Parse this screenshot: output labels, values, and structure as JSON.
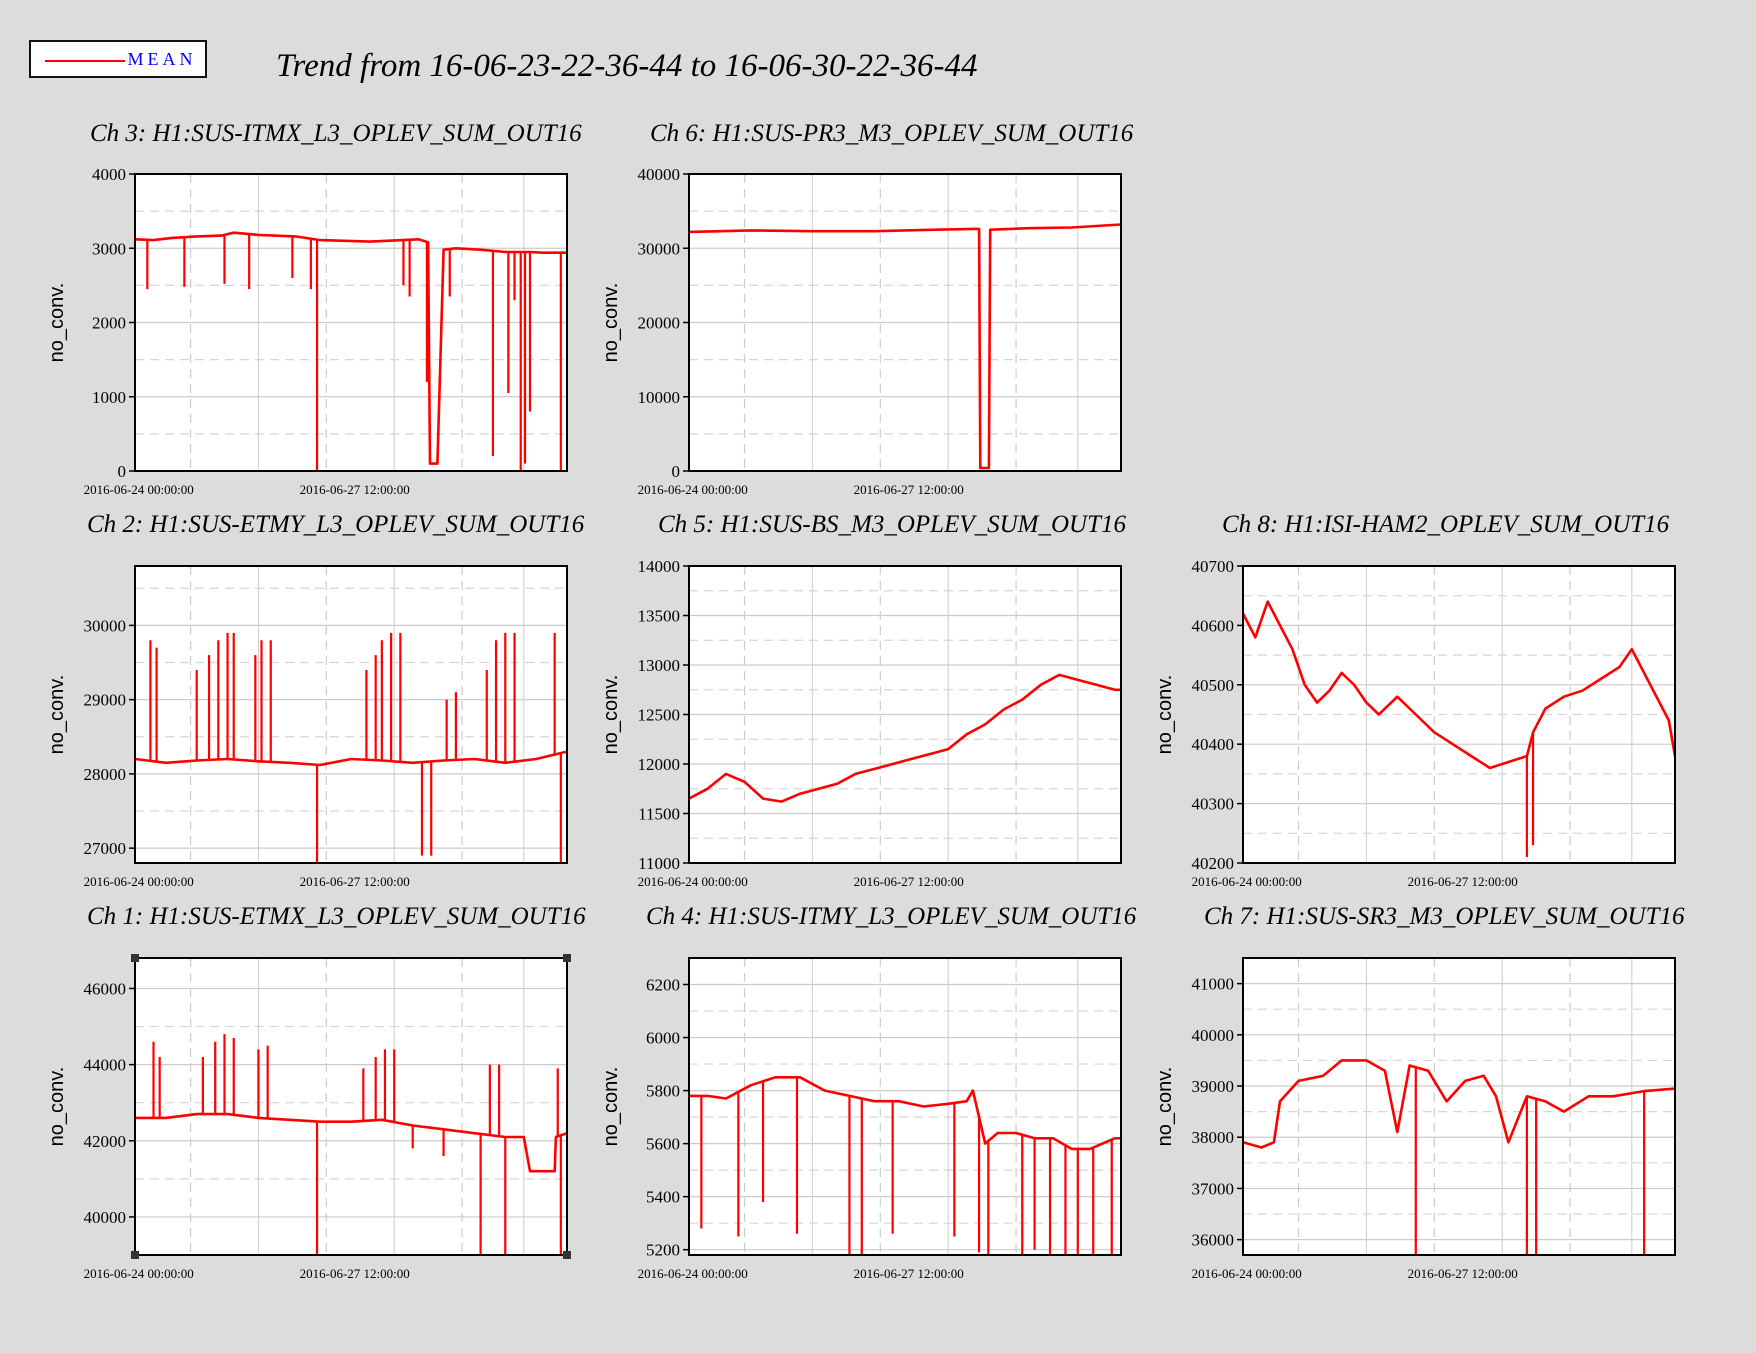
{
  "legend": {
    "label": "MEAN",
    "color": "#ff0000",
    "label_color": "#0000ff"
  },
  "trend_title": "Trend from 16-06-23-22-36-44 to 16-06-30-22-36-44",
  "chart_data": [
    {
      "type": "line",
      "title": "Ch 3: H1:SUS-ITMX_L3_OPLEV_SUM_OUT16",
      "ylabel": "no_conv.",
      "xlabel": "",
      "xlim": [
        0,
        7
      ],
      "xticks": [
        {
          "value": 0.06,
          "label": "2016-06-24 00:00:00"
        },
        {
          "value": 3.56,
          "label": "2016-06-27 12:00:00"
        }
      ],
      "ylim": [
        0,
        4000
      ],
      "yticks": [
        0,
        1000,
        2000,
        3000,
        4000
      ],
      "grid": true,
      "series": [
        {
          "color": "#ff0000",
          "x": [
            0.0,
            0.3,
            0.6,
            1.0,
            1.4,
            1.6,
            2.0,
            2.6,
            3.0,
            3.8,
            4.6,
            4.75,
            4.78,
            4.9,
            5.0,
            5.2,
            5.6,
            6.0,
            6.4,
            6.6,
            7.0
          ],
          "y": [
            3120,
            3110,
            3140,
            3160,
            3170,
            3210,
            3180,
            3160,
            3110,
            3090,
            3120,
            3080,
            100,
            100,
            2980,
            3000,
            2980,
            2950,
            2950,
            2940,
            2940
          ]
        }
      ],
      "spikes": [
        {
          "x": 0.2,
          "y": 2450
        },
        {
          "x": 0.8,
          "y": 2480
        },
        {
          "x": 1.45,
          "y": 2520
        },
        {
          "x": 1.85,
          "y": 2450
        },
        {
          "x": 2.55,
          "y": 2600
        },
        {
          "x": 2.85,
          "y": 2450
        },
        {
          "x": 2.95,
          "y": 0
        },
        {
          "x": 4.35,
          "y": 2500
        },
        {
          "x": 4.45,
          "y": 2350
        },
        {
          "x": 4.73,
          "y": 1200
        },
        {
          "x": 5.1,
          "y": 2350
        },
        {
          "x": 5.8,
          "y": 200
        },
        {
          "x": 6.05,
          "y": 1050
        },
        {
          "x": 6.15,
          "y": 2300
        },
        {
          "x": 6.25,
          "y": 0
        },
        {
          "x": 6.32,
          "y": 100
        },
        {
          "x": 6.4,
          "y": 800
        },
        {
          "x": 6.9,
          "y": 0
        }
      ]
    },
    {
      "type": "line",
      "title": "Ch 6: H1:SUS-PR3_M3_OPLEV_SUM_OUT16",
      "ylabel": "no_conv.",
      "xlabel": "",
      "xlim": [
        0,
        7
      ],
      "xticks": [
        {
          "value": 0.06,
          "label": "2016-06-24 00:00:00"
        },
        {
          "value": 3.56,
          "label": "2016-06-27 12:00:00"
        }
      ],
      "ylim": [
        0,
        40000
      ],
      "yticks": [
        0,
        10000,
        20000,
        30000,
        40000
      ],
      "grid": true,
      "series": [
        {
          "color": "#ff0000",
          "x": [
            0.0,
            1.0,
            2.0,
            3.0,
            4.0,
            4.6,
            4.7,
            4.72,
            4.86,
            4.88,
            5.5,
            6.2,
            7.0
          ],
          "y": [
            32200,
            32400,
            32300,
            32300,
            32500,
            32600,
            32600,
            400,
            400,
            32500,
            32700,
            32800,
            33200
          ]
        }
      ],
      "spikes": []
    },
    {
      "type": "line",
      "title": "Ch 2: H1:SUS-ETMY_L3_OPLEV_SUM_OUT16",
      "ylabel": "no_conv.",
      "xlabel": "",
      "xlim": [
        0,
        7
      ],
      "xticks": [
        {
          "value": 0.06,
          "label": "2016-06-24 00:00:00"
        },
        {
          "value": 3.56,
          "label": "2016-06-27 12:00:00"
        }
      ],
      "ylim": [
        26800,
        30800
      ],
      "yticks": [
        27000,
        28000,
        29000,
        30000
      ],
      "grid": true,
      "series": [
        {
          "color": "#ff0000",
          "x": [
            0.0,
            0.5,
            1.0,
            1.5,
            2.0,
            2.5,
            3.0,
            3.5,
            4.0,
            4.5,
            5.0,
            5.5,
            6.0,
            6.5,
            7.0
          ],
          "y": [
            28200,
            28150,
            28180,
            28200,
            28170,
            28150,
            28120,
            28200,
            28180,
            28150,
            28180,
            28200,
            28150,
            28200,
            28300
          ]
        }
      ],
      "spikes": [
        {
          "x": 0.25,
          "y": 29800
        },
        {
          "x": 0.35,
          "y": 29700
        },
        {
          "x": 1.0,
          "y": 29400
        },
        {
          "x": 1.2,
          "y": 29600
        },
        {
          "x": 1.35,
          "y": 29800
        },
        {
          "x": 1.5,
          "y": 29900
        },
        {
          "x": 1.6,
          "y": 29900
        },
        {
          "x": 1.95,
          "y": 29600
        },
        {
          "x": 2.05,
          "y": 29800
        },
        {
          "x": 2.2,
          "y": 29800
        },
        {
          "x": 2.95,
          "y": 26800
        },
        {
          "x": 3.75,
          "y": 29400
        },
        {
          "x": 3.9,
          "y": 29600
        },
        {
          "x": 4.0,
          "y": 29800
        },
        {
          "x": 4.15,
          "y": 29900
        },
        {
          "x": 4.3,
          "y": 29900
        },
        {
          "x": 4.65,
          "y": 26900
        },
        {
          "x": 4.8,
          "y": 26900
        },
        {
          "x": 5.05,
          "y": 29000
        },
        {
          "x": 5.2,
          "y": 29100
        },
        {
          "x": 5.7,
          "y": 29400
        },
        {
          "x": 5.85,
          "y": 29800
        },
        {
          "x": 6.0,
          "y": 29900
        },
        {
          "x": 6.15,
          "y": 29900
        },
        {
          "x": 6.8,
          "y": 29900
        },
        {
          "x": 6.9,
          "y": 26800
        }
      ]
    },
    {
      "type": "line",
      "title": "Ch 5: H1:SUS-BS_M3_OPLEV_SUM_OUT16",
      "ylabel": "no_conv.",
      "xlabel": "",
      "xlim": [
        0,
        7
      ],
      "xticks": [
        {
          "value": 0.06,
          "label": "2016-06-24 00:00:00"
        },
        {
          "value": 3.56,
          "label": "2016-06-27 12:00:00"
        }
      ],
      "ylim": [
        11000,
        14000
      ],
      "yticks": [
        11000,
        11500,
        12000,
        12500,
        13000,
        13500,
        14000
      ],
      "grid": true,
      "series": [
        {
          "color": "#ff0000",
          "x": [
            0.0,
            0.3,
            0.6,
            0.9,
            1.2,
            1.5,
            1.8,
            2.1,
            2.4,
            2.7,
            3.0,
            3.3,
            3.6,
            3.9,
            4.2,
            4.5,
            4.8,
            5.1,
            5.4,
            5.7,
            6.0,
            6.3,
            6.6,
            6.9,
            7.0
          ],
          "y": [
            11650,
            11750,
            11900,
            11820,
            11650,
            11620,
            11700,
            11750,
            11800,
            11900,
            11950,
            12000,
            12050,
            12100,
            12150,
            12300,
            12400,
            12550,
            12650,
            12800,
            12900,
            12850,
            12800,
            12750,
            12750
          ]
        }
      ],
      "spikes": []
    },
    {
      "type": "line",
      "title": "Ch 8: H1:ISI-HAM2_OPLEV_SUM_OUT16",
      "ylabel": "no_conv.",
      "xlabel": "",
      "xlim": [
        0,
        7
      ],
      "xticks": [
        {
          "value": 0.06,
          "label": "2016-06-24 00:00:00"
        },
        {
          "value": 3.56,
          "label": "2016-06-27 12:00:00"
        }
      ],
      "ylim": [
        40200,
        40700
      ],
      "yticks": [
        40200,
        40300,
        40400,
        40500,
        40600,
        40700
      ],
      "grid": true,
      "series": [
        {
          "color": "#ff0000",
          "x": [
            0.0,
            0.2,
            0.4,
            0.6,
            0.8,
            1.0,
            1.2,
            1.4,
            1.6,
            1.8,
            2.0,
            2.2,
            2.5,
            2.8,
            3.1,
            3.4,
            3.7,
            4.0,
            4.3,
            4.6,
            4.7,
            4.9,
            5.2,
            5.5,
            5.8,
            6.1,
            6.3,
            6.5,
            6.7,
            6.9,
            7.0
          ],
          "y": [
            40620,
            40580,
            40640,
            40600,
            40560,
            40500,
            40470,
            40490,
            40520,
            40500,
            40470,
            40450,
            40480,
            40450,
            40420,
            40400,
            40380,
            40360,
            40370,
            40380,
            40420,
            40460,
            40480,
            40490,
            40510,
            40530,
            40560,
            40520,
            40480,
            40440,
            40380
          ]
        }
      ],
      "spikes": [
        {
          "x": 4.6,
          "y": 40210
        },
        {
          "x": 4.7,
          "y": 40230
        }
      ]
    },
    {
      "type": "line",
      "title": "Ch 1: H1:SUS-ETMX_L3_OPLEV_SUM_OUT16",
      "ylabel": "no_conv.",
      "xlabel": "",
      "xlim": [
        0,
        7
      ],
      "xticks": [
        {
          "value": 0.06,
          "label": "2016-06-24 00:00:00"
        },
        {
          "value": 3.56,
          "label": "2016-06-27 12:00:00"
        }
      ],
      "ylim": [
        39000,
        46800
      ],
      "yticks": [
        40000,
        42000,
        44000,
        46000
      ],
      "grid": true,
      "series": [
        {
          "color": "#ff0000",
          "x": [
            0.0,
            0.5,
            1.0,
            1.5,
            2.0,
            2.5,
            3.0,
            3.5,
            4.0,
            4.5,
            5.0,
            5.5,
            6.0,
            6.3,
            6.4,
            6.8,
            6.82,
            7.0
          ],
          "y": [
            42600,
            42600,
            42700,
            42700,
            42600,
            42550,
            42500,
            42500,
            42550,
            42400,
            42300,
            42200,
            42100,
            42100,
            41200,
            41200,
            42100,
            42200
          ]
        }
      ],
      "spikes": [
        {
          "x": 0.3,
          "y": 44600
        },
        {
          "x": 0.4,
          "y": 44200
        },
        {
          "x": 1.1,
          "y": 44200
        },
        {
          "x": 1.3,
          "y": 44600
        },
        {
          "x": 1.45,
          "y": 44800
        },
        {
          "x": 1.6,
          "y": 44700
        },
        {
          "x": 2.0,
          "y": 44400
        },
        {
          "x": 2.15,
          "y": 44500
        },
        {
          "x": 2.95,
          "y": 39000
        },
        {
          "x": 3.7,
          "y": 43900
        },
        {
          "x": 3.9,
          "y": 44200
        },
        {
          "x": 4.05,
          "y": 44400
        },
        {
          "x": 4.2,
          "y": 44400
        },
        {
          "x": 4.5,
          "y": 41800
        },
        {
          "x": 5.0,
          "y": 41600
        },
        {
          "x": 5.6,
          "y": 39000
        },
        {
          "x": 5.75,
          "y": 44000
        },
        {
          "x": 5.9,
          "y": 44000
        },
        {
          "x": 6.0,
          "y": 39000
        },
        {
          "x": 6.85,
          "y": 43900
        },
        {
          "x": 6.9,
          "y": 39000
        }
      ]
    },
    {
      "type": "line",
      "title": "Ch 4: H1:SUS-ITMY_L3_OPLEV_SUM_OUT16",
      "ylabel": "no_conv.",
      "xlabel": "",
      "xlim": [
        0,
        7
      ],
      "xticks": [
        {
          "value": 0.06,
          "label": "2016-06-24 00:00:00"
        },
        {
          "value": 3.56,
          "label": "2016-06-27 12:00:00"
        }
      ],
      "ylim": [
        5180,
        6300
      ],
      "yticks": [
        5200,
        5400,
        5600,
        5800,
        6000,
        6200
      ],
      "grid": true,
      "series": [
        {
          "color": "#ff0000",
          "x": [
            0.0,
            0.3,
            0.6,
            1.0,
            1.4,
            1.8,
            2.2,
            2.6,
            3.0,
            3.4,
            3.8,
            4.2,
            4.5,
            4.6,
            4.8,
            5.0,
            5.3,
            5.6,
            5.9,
            6.2,
            6.5,
            6.7,
            6.9,
            7.0
          ],
          "y": [
            5780,
            5780,
            5770,
            5820,
            5850,
            5850,
            5800,
            5780,
            5760,
            5760,
            5740,
            5750,
            5760,
            5800,
            5600,
            5640,
            5640,
            5620,
            5620,
            5580,
            5580,
            5600,
            5620,
            5620
          ]
        }
      ],
      "spikes": [
        {
          "x": 0.2,
          "y": 5280
        },
        {
          "x": 0.8,
          "y": 5250
        },
        {
          "x": 1.2,
          "y": 5380
        },
        {
          "x": 1.75,
          "y": 5260
        },
        {
          "x": 2.6,
          "y": 5180
        },
        {
          "x": 2.8,
          "y": 5180
        },
        {
          "x": 3.3,
          "y": 5260
        },
        {
          "x": 4.3,
          "y": 5250
        },
        {
          "x": 4.7,
          "y": 5190
        },
        {
          "x": 4.85,
          "y": 5180
        },
        {
          "x": 5.4,
          "y": 5180
        },
        {
          "x": 5.6,
          "y": 5200
        },
        {
          "x": 5.85,
          "y": 5180
        },
        {
          "x": 6.1,
          "y": 5180
        },
        {
          "x": 6.3,
          "y": 5180
        },
        {
          "x": 6.55,
          "y": 5180
        },
        {
          "x": 6.85,
          "y": 5180
        }
      ]
    },
    {
      "type": "line",
      "title": "Ch 7: H1:SUS-SR3_M3_OPLEV_SUM_OUT16",
      "ylabel": "no_conv.",
      "xlabel": "",
      "xlim": [
        0,
        7
      ],
      "xticks": [
        {
          "value": 0.06,
          "label": "2016-06-24 00:00:00"
        },
        {
          "value": 3.56,
          "label": "2016-06-27 12:00:00"
        }
      ],
      "ylim": [
        35700,
        41500
      ],
      "yticks": [
        36000,
        37000,
        38000,
        39000,
        40000,
        41000
      ],
      "grid": true,
      "series": [
        {
          "color": "#ff0000",
          "x": [
            0.0,
            0.3,
            0.5,
            0.6,
            0.9,
            1.3,
            1.6,
            2.0,
            2.3,
            2.5,
            2.7,
            3.0,
            3.3,
            3.6,
            3.9,
            4.1,
            4.3,
            4.6,
            4.9,
            5.2,
            5.6,
            6.0,
            6.5,
            7.0
          ],
          "y": [
            37900,
            37800,
            37900,
            38700,
            39100,
            39200,
            39500,
            39500,
            39300,
            38100,
            39400,
            39300,
            38700,
            39100,
            39200,
            38800,
            37900,
            38800,
            38700,
            38500,
            38800,
            38800,
            38900,
            38950
          ]
        }
      ],
      "spikes": [
        {
          "x": 2.8,
          "y": 35700
        },
        {
          "x": 4.6,
          "y": 35700
        },
        {
          "x": 4.75,
          "y": 35700
        },
        {
          "x": 6.5,
          "y": 35700
        }
      ]
    }
  ]
}
